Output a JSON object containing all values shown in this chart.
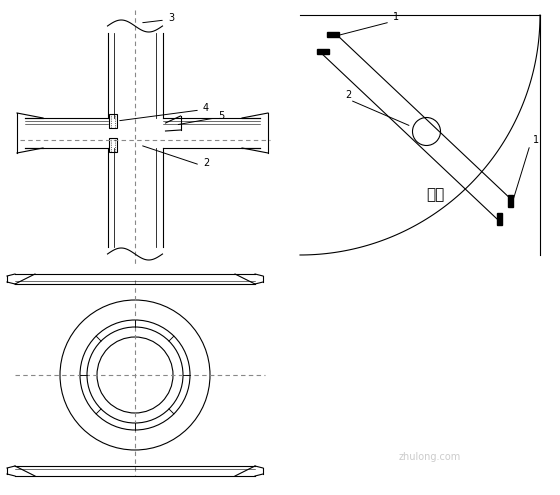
{
  "bg_color": "#ffffff",
  "line_color": "#000000",
  "gray_line": "#888888",
  "dashed_color": "#888888",
  "label_color": "#000000",
  "fig_width": 5.6,
  "fig_height": 4.95,
  "dpi": 100
}
